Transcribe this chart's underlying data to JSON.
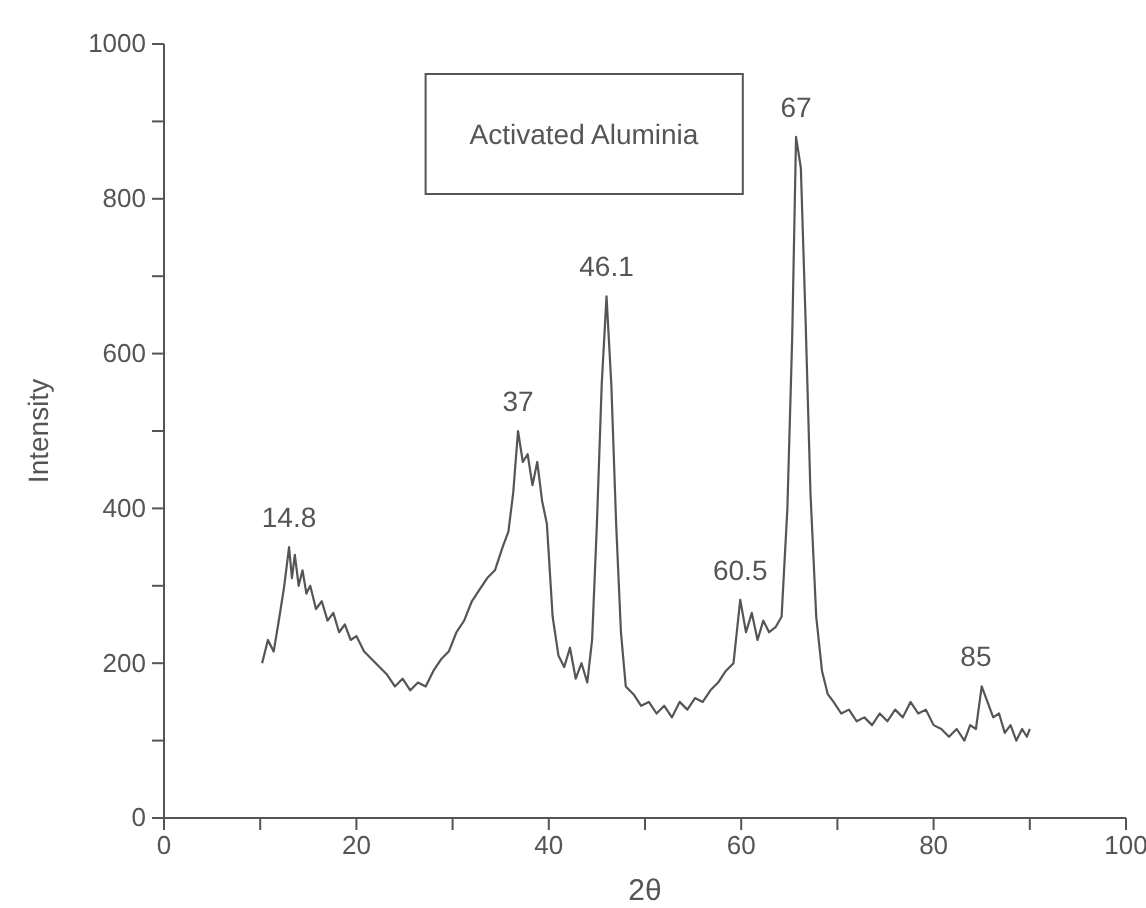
{
  "chart_data": {
    "type": "line",
    "title": "Activated Aluminia",
    "xlabel": "2θ",
    "ylabel": "Intensity",
    "xlim": [
      0,
      100
    ],
    "ylim": [
      0,
      1000
    ],
    "xticks": [
      0,
      {
        "value": 10,
        "label": null
      },
      20,
      {
        "value": 30,
        "label": null
      },
      40,
      {
        "value": 50,
        "label": null
      },
      60,
      {
        "value": 70,
        "label": null
      },
      80,
      {
        "value": 90,
        "label": null
      },
      100
    ],
    "yticks": [
      0,
      {
        "value": 100,
        "label": null
      },
      200,
      {
        "value": 300,
        "label": null
      },
      400,
      {
        "value": 500,
        "label": null
      },
      600,
      {
        "value": 700,
        "label": null
      },
      800,
      {
        "value": 900,
        "label": null
      },
      1000
    ],
    "grid": false,
    "marker": "none",
    "line_style": "solid",
    "series": [
      {
        "color": "#555555",
        "x": [
          10.2,
          10.8,
          11.4,
          12,
          12.5,
          13,
          13.3,
          13.6,
          14,
          14.4,
          14.8,
          15.2,
          15.8,
          16.4,
          17,
          17.6,
          18.2,
          18.8,
          19.4,
          20,
          20.8,
          21.6,
          22.4,
          23.2,
          24,
          24.8,
          25.6,
          26.4,
          27.2,
          28,
          28.8,
          29.6,
          30.4,
          31.2,
          32,
          32.8,
          33.6,
          34.4,
          35.2,
          35.8,
          36.3,
          36.8,
          37.3,
          37.8,
          38.3,
          38.8,
          39.3,
          39.8,
          40.4,
          41,
          41.6,
          42.2,
          42.8,
          43.4,
          44,
          44.5,
          45,
          45.5,
          46,
          46.5,
          47,
          47.5,
          48,
          48.8,
          49.6,
          50.4,
          51.2,
          52,
          52.8,
          53.6,
          54.4,
          55.2,
          56,
          56.8,
          57.6,
          58.4,
          59.2,
          59.9,
          60.5,
          61.1,
          61.7,
          62.3,
          62.9,
          63.6,
          64.2,
          64.8,
          65.3,
          65.7,
          66.2,
          66.7,
          67.2,
          67.8,
          68.4,
          69,
          69.6,
          70.4,
          71.2,
          72,
          72.8,
          73.6,
          74.4,
          75.2,
          76,
          76.8,
          77.6,
          78.4,
          79.2,
          80,
          80.8,
          81.6,
          82.4,
          83.2,
          83.8,
          84.4,
          85,
          85.6,
          86.2,
          86.8,
          87.4,
          88,
          88.6,
          89.2,
          89.7,
          90
        ],
        "values": [
          200,
          230,
          215,
          260,
          300,
          350,
          310,
          340,
          300,
          320,
          290,
          300,
          270,
          280,
          255,
          265,
          240,
          250,
          230,
          235,
          215,
          205,
          195,
          185,
          170,
          180,
          165,
          175,
          170,
          190,
          205,
          215,
          240,
          255,
          280,
          295,
          310,
          320,
          350,
          370,
          420,
          500,
          460,
          470,
          430,
          460,
          410,
          380,
          260,
          210,
          195,
          220,
          180,
          200,
          175,
          230,
          380,
          560,
          674,
          560,
          380,
          240,
          170,
          160,
          145,
          150,
          135,
          145,
          130,
          150,
          140,
          155,
          150,
          165,
          175,
          190,
          200,
          282,
          240,
          265,
          230,
          255,
          240,
          247,
          260,
          400,
          620,
          880,
          840,
          640,
          420,
          260,
          190,
          160,
          150,
          135,
          140,
          125,
          130,
          120,
          135,
          125,
          140,
          130,
          150,
          135,
          140,
          120,
          115,
          105,
          115,
          100,
          120,
          115,
          170,
          150,
          130,
          135,
          110,
          120,
          100,
          115,
          105,
          115
        ]
      }
    ],
    "annotations": [
      {
        "text": "14.8",
        "x": 13,
        "y": 350
      },
      {
        "text": "37",
        "x": 36.8,
        "y": 500
      },
      {
        "text": "46.1",
        "x": 46,
        "y": 674
      },
      {
        "text": "60.5",
        "x": 59.9,
        "y": 282
      },
      {
        "text": "67",
        "x": 65.7,
        "y": 880
      },
      {
        "text": "85",
        "x": 84.4,
        "y": 170
      }
    ]
  }
}
